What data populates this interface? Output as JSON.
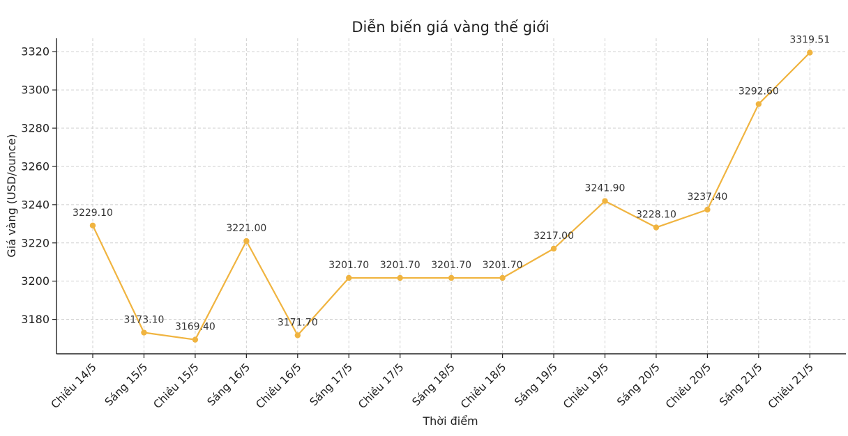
{
  "chart_data": {
    "type": "line",
    "title": "Diễn biến giá vàng thế giới",
    "xlabel": "Thời điểm",
    "ylabel": "Giá vàng (USD/ounce)",
    "categories": [
      "Chiều 14/5",
      "Sáng 15/5",
      "Chiều 15/5",
      "Sáng 16/5",
      "Chiều 16/5",
      "Sáng 17/5",
      "Chiều 17/5",
      "Sáng 18/5",
      "Chiều 18/5",
      "Sáng 19/5",
      "Chiều 19/5",
      "Sáng 20/5",
      "Chiều 20/5",
      "Sáng 21/5",
      "Chiều 21/5"
    ],
    "values": [
      3229.1,
      3173.1,
      3169.4,
      3221.0,
      3171.7,
      3201.7,
      3201.7,
      3201.7,
      3201.7,
      3217.0,
      3241.9,
      3228.1,
      3237.4,
      3292.6,
      3319.51
    ],
    "data_labels": [
      "3229.10",
      "3173.10",
      "3169.40",
      "3221.00",
      "3171.70",
      "3201.70",
      "3201.70",
      "3201.70",
      "3201.70",
      "3217.00",
      "3241.90",
      "3228.10",
      "3237.40",
      "3292.60",
      "3319.51"
    ],
    "yticks": [
      3180,
      3200,
      3220,
      3240,
      3260,
      3280,
      3300,
      3320
    ],
    "ylim": [
      3162,
      3327
    ],
    "grid": true,
    "legend": "none",
    "color": "#f0b440"
  }
}
